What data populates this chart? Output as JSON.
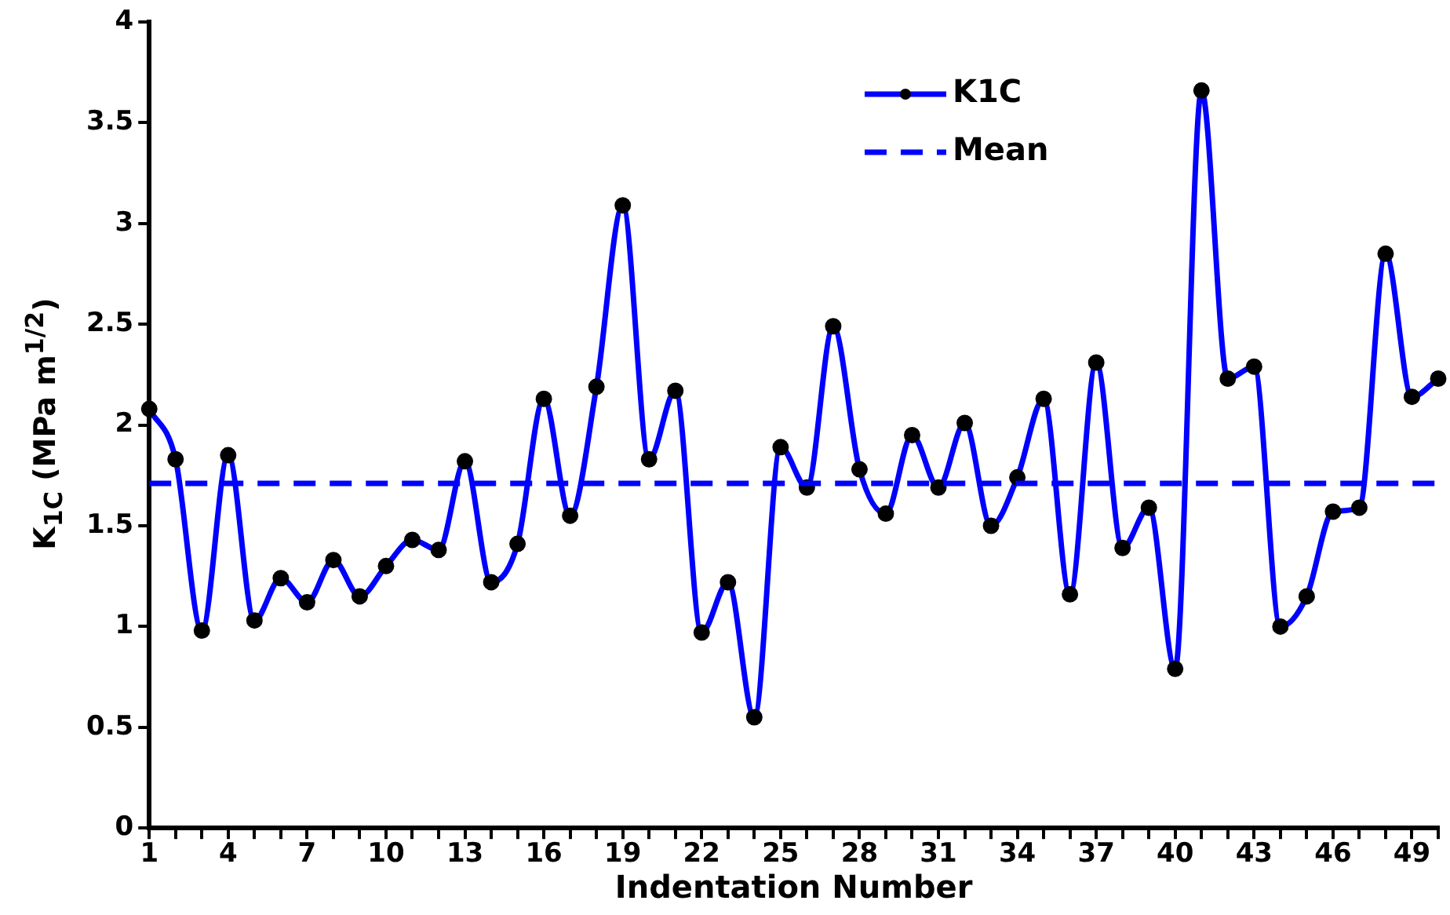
{
  "chart_data": {
    "type": "line",
    "xlabel": "Indentation Number",
    "ylabel": "K$_{1C}$  (MPa m$^{1/2}$)",
    "categories": [
      "1",
      null,
      null,
      "4",
      null,
      null,
      "7",
      null,
      null,
      "10",
      null,
      null,
      "13",
      null,
      null,
      "16",
      null,
      null,
      "19",
      null,
      null,
      "22",
      null,
      null,
      "25",
      null,
      null,
      "28",
      null,
      null,
      "31",
      null,
      null,
      "34",
      null,
      null,
      "37",
      null,
      null,
      "40",
      null,
      null,
      "43",
      null,
      null,
      "46",
      null,
      null,
      "49",
      null
    ],
    "series": [
      {
        "name": "K1C",
        "color": "#0000ff",
        "values": [
          2.08,
          1.83,
          0.98,
          1.85,
          1.03,
          1.24,
          1.12,
          1.33,
          1.15,
          1.3,
          1.43,
          1.38,
          1.82,
          1.22,
          1.41,
          2.13,
          1.55,
          2.19,
          3.09,
          1.83,
          2.17,
          0.97,
          1.22,
          0.55,
          1.89,
          1.69,
          2.49,
          1.78,
          1.56,
          1.95,
          1.69,
          2.01,
          1.5,
          1.74,
          2.13,
          1.16,
          2.31,
          1.39,
          1.59,
          0.79,
          3.66,
          2.23,
          2.29,
          1.0,
          1.15,
          1.57,
          1.59,
          2.85,
          2.14,
          2.23
        ]
      }
    ],
    "ref_lines": [
      {
        "axis": "y",
        "value": 1.71,
        "label": "Mean",
        "color": "#0000ff",
        "line_style": "dashed"
      }
    ],
    "ylim": [
      0,
      4
    ],
    "yticks": [
      0,
      0.5,
      1,
      1.5,
      2,
      2.5,
      3,
      3.5,
      4
    ],
    "marker": "circle",
    "legend": "top right",
    "grid": false
  }
}
